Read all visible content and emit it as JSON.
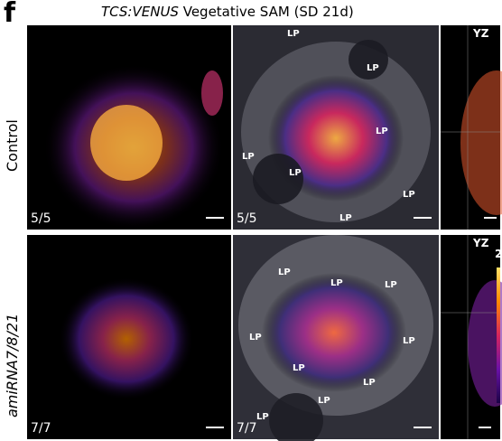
{
  "figure": {
    "panel_letter": "f",
    "title_italic": "TCS:VENUS",
    "title_rest": " Vegetative SAM (SD 21d)"
  },
  "rows": [
    {
      "label": "Control",
      "label_italic": false,
      "tiles": [
        {
          "count": "5/5",
          "labels": []
        },
        {
          "count": "5/5",
          "labels": [
            "LP",
            "LP",
            "LP",
            "LP",
            "LP",
            "LP",
            "LP"
          ]
        },
        {
          "corner_label": "YZ"
        }
      ]
    },
    {
      "label": "amiRNA7/8/21",
      "label_italic": true,
      "tiles": [
        {
          "count": "7/7",
          "labels": []
        },
        {
          "count": "7/7",
          "labels": [
            "LP",
            "LP",
            "LP",
            "LP",
            "LP",
            "LP",
            "LP",
            "LP",
            "LP"
          ]
        },
        {
          "corner_label": "YZ",
          "corner_number": "2"
        }
      ]
    }
  ],
  "colors": {
    "hot": "#ffd24a",
    "mid": "#e4572e",
    "cool": "#6a1b9a",
    "bg": "#000000"
  }
}
